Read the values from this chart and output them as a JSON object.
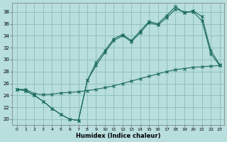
{
  "xlabel": "Humidex (Indice chaleur)",
  "background_color": "#b8dede",
  "grid_color": "#90c0c0",
  "line_color": "#1a6b5a",
  "xlim": [
    -0.5,
    23.5
  ],
  "ylim": [
    19.0,
    39.5
  ],
  "xticks": [
    0,
    1,
    2,
    3,
    4,
    5,
    6,
    7,
    8,
    9,
    10,
    11,
    12,
    13,
    14,
    15,
    16,
    17,
    18,
    19,
    20,
    21,
    22,
    23
  ],
  "yticks": [
    20,
    22,
    24,
    26,
    28,
    30,
    32,
    34,
    36,
    38
  ],
  "series1_x": [
    0,
    1,
    2,
    3,
    4,
    5,
    6,
    7,
    8,
    9,
    10,
    11,
    12,
    13,
    14,
    15,
    16,
    17,
    18,
    19,
    20,
    21,
    22,
    23
  ],
  "series1_y": [
    25.0,
    24.8,
    24.0,
    23.0,
    21.8,
    20.8,
    20.0,
    19.8,
    26.5,
    29.0,
    31.2,
    33.2,
    34.0,
    33.0,
    34.5,
    36.2,
    35.8,
    37.0,
    38.5,
    38.0,
    38.0,
    36.5,
    31.0,
    29.0
  ],
  "series2_x": [
    0,
    1,
    2,
    3,
    4,
    5,
    6,
    7,
    8,
    9,
    10,
    11,
    12,
    13,
    14,
    15,
    16,
    17,
    18,
    19,
    20,
    21,
    22,
    23
  ],
  "series2_y": [
    25.0,
    24.8,
    24.0,
    23.0,
    21.8,
    20.8,
    20.0,
    19.8,
    26.5,
    29.5,
    31.5,
    33.5,
    34.2,
    33.2,
    34.8,
    36.4,
    36.0,
    37.4,
    38.9,
    37.8,
    38.2,
    37.2,
    31.5,
    29.2
  ],
  "series3_x": [
    0,
    1,
    2,
    3,
    4,
    5,
    6,
    7,
    8,
    9,
    10,
    11,
    12,
    13,
    14,
    15,
    16,
    17,
    18,
    19,
    20,
    21,
    22,
    23
  ],
  "series3_y": [
    25.0,
    25.0,
    24.3,
    24.1,
    24.2,
    24.4,
    24.5,
    24.6,
    24.8,
    25.0,
    25.3,
    25.6,
    26.0,
    26.4,
    26.8,
    27.2,
    27.6,
    28.0,
    28.3,
    28.5,
    28.7,
    28.8,
    28.9,
    29.0
  ]
}
